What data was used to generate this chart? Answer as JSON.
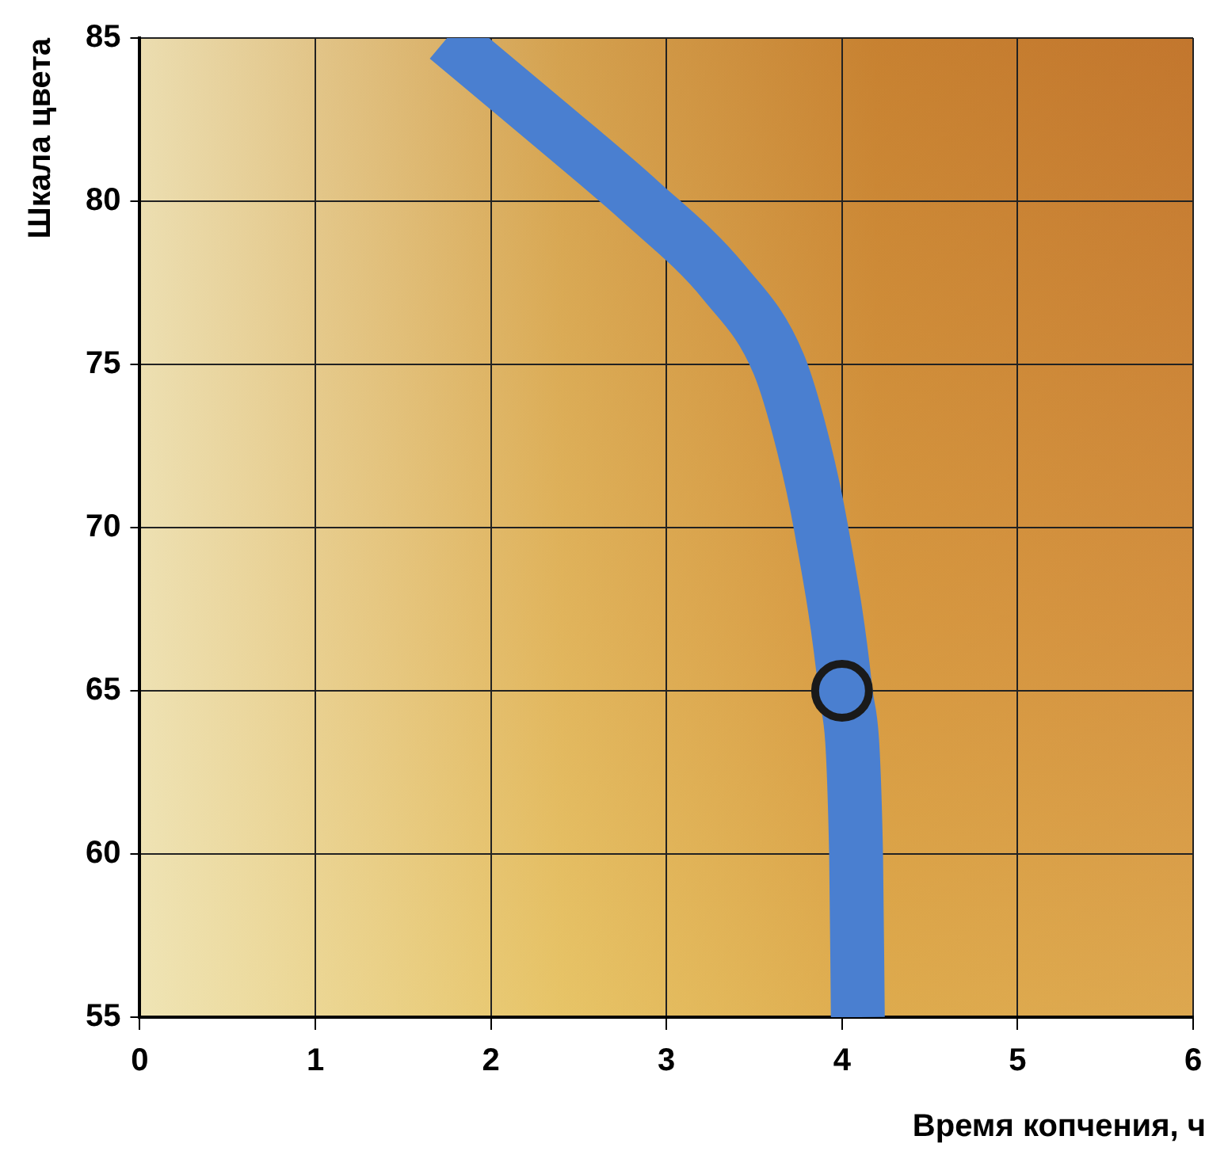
{
  "chart_data": {
    "type": "line",
    "xlabel": "Время копчения, ч",
    "ylabel": "Шкала цвета",
    "xlim": [
      0,
      6
    ],
    "xticks": [
      0,
      1,
      2,
      3,
      4,
      5,
      6
    ],
    "ylim": [
      55,
      85
    ],
    "yticks": [
      55,
      60,
      65,
      70,
      75,
      80,
      85
    ],
    "grid": true,
    "legend": false,
    "series": [
      {
        "color": "#4a7fd0",
        "x": [
          1.75,
          2.35,
          2.85,
          3.33,
          3.64,
          3.78,
          3.88,
          4.02,
          4.08,
          4.09
        ],
        "values": [
          85,
          82.3,
          80,
          77.5,
          75,
          72.5,
          70,
          65,
          60,
          55
        ],
        "marker": "none"
      },
      {
        "type": "scatter",
        "color": "#1a1a1a",
        "x": [
          4
        ],
        "values": [
          65
        ],
        "marker": "circle"
      }
    ]
  }
}
